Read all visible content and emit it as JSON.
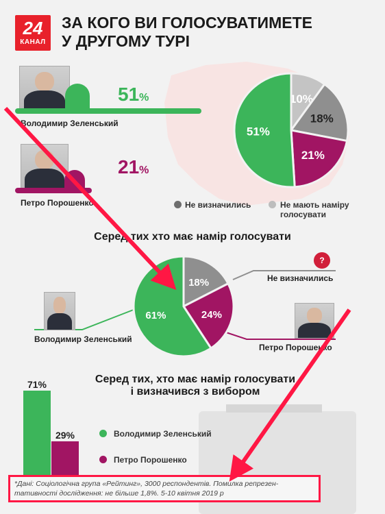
{
  "header": {
    "logo_number": "24",
    "logo_text": "КАНАЛ",
    "title_line1": "ЗА КОГО ВИ ГОЛОСУВАТИМЕТЕ",
    "title_line2": "У ДРУГОМУ ТУРІ"
  },
  "candidates": [
    {
      "name": "Володимир Зеленський",
      "percent": "51",
      "color": "#3cb55a"
    },
    {
      "name": "Петро Порошенко",
      "percent": "21",
      "color": "#a11563"
    }
  ],
  "colors": {
    "zelensky": "#3cb55a",
    "poroshenko": "#a11563",
    "undecided": "#8f8f8f",
    "no_vote": "#c4c4c4",
    "accent_red": "#e8212b",
    "arrow_red": "#ff1744"
  },
  "legend1": {
    "undecided": "Не визначились",
    "no_vote_line1": "Не мають наміру",
    "no_vote_line2": "голосувати"
  },
  "section2": {
    "title": "Серед тих хто має намір голосувати",
    "undecided_label": "Не визначились",
    "question_mark": "?",
    "zelensky_name": "Володимир Зеленський",
    "poroshenko_name": "Петро Порошенко"
  },
  "section3": {
    "title_line1": "Серед тих, хто має намір голосувати",
    "title_line2": "і визначився з вибором",
    "legend_zelensky": "Володимир Зеленський",
    "legend_poroshenko": "Петро Порошенко"
  },
  "note": {
    "line1": "*Дані: Соціологічна група «Рейтинг», 3000 респондентів. Помилка репрезен-",
    "line2": "тативності дослідження: не більше 1,8%.  5-10 квітня 2019 р"
  },
  "chart_data": [
    {
      "type": "bar",
      "categories": [
        "Володимир Зеленський",
        "Петро Порошенко"
      ],
      "values": [
        51,
        21
      ],
      "value_suffix": "%"
    },
    {
      "type": "pie",
      "labels": [
        "Володимир Зеленський",
        "Петро Порошенко",
        "Не визначились",
        "Не мають наміру голосувати"
      ],
      "values": [
        51,
        21,
        18,
        10
      ],
      "colors": [
        "#3cb55a",
        "#a11563",
        "#8f8f8f",
        "#c4c4c4"
      ],
      "value_suffix": "%"
    },
    {
      "type": "pie",
      "title": "Серед тих хто має намір голосувати",
      "labels": [
        "Володимир Зеленський",
        "Петро Порошенко",
        "Не визначились"
      ],
      "values": [
        61,
        24,
        18
      ],
      "colors": [
        "#3cb55a",
        "#a11563",
        "#8f8f8f"
      ],
      "value_suffix": "%"
    },
    {
      "type": "bar",
      "title": "Серед тих, хто має намір голосувати і визначився з вибором",
      "categories": [
        "Володимир Зеленський",
        "Петро Порошенко"
      ],
      "values": [
        71,
        29
      ],
      "colors": [
        "#3cb55a",
        "#a11563"
      ],
      "value_suffix": "%"
    }
  ]
}
